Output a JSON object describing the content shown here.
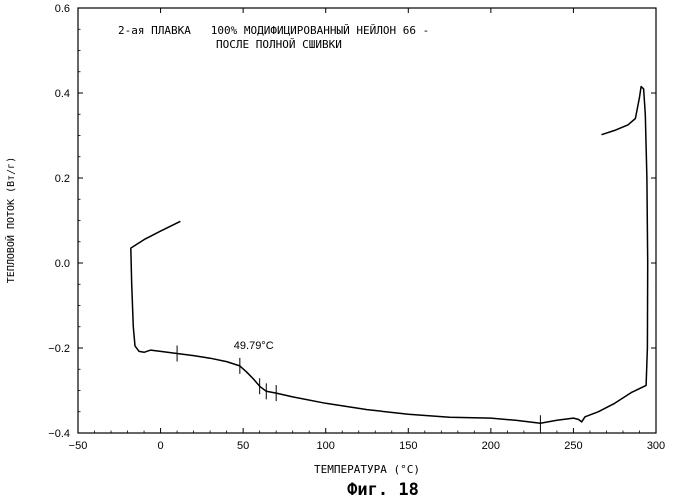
{
  "chart_data": {
    "type": "line",
    "title_line1": "2-ая ПЛАВКА   100% МОДИФИЦИРОВАННЫЙ НЕЙЛОН 66 -",
    "title_line2": "ПОСЛЕ ПОЛНОЙ СШИВКИ",
    "xlabel": "ТЕМПЕРАТУРА (°C)",
    "ylabel": "ТЕПЛОВОЙ ПОТОК (Вт/г)",
    "caption": "Фиг. 18",
    "xlim": [
      -50,
      300
    ],
    "ylim": [
      -0.4,
      0.6
    ],
    "x_ticks": [
      -50,
      0,
      50,
      100,
      150,
      200,
      250,
      300
    ],
    "x_tick_labels": [
      "−50",
      "0",
      "50",
      "100",
      "150",
      "200",
      "250",
      "300"
    ],
    "y_ticks": [
      -0.4,
      -0.2,
      0.0,
      0.2,
      0.4,
      0.6
    ],
    "y_tick_labels": [
      "−0.4",
      "−0.2",
      "0.0",
      "0.2",
      "0.4",
      "0.6"
    ],
    "grid": false,
    "annotation": {
      "text": "49.79°C",
      "x": 49.79,
      "y": -0.235
    },
    "series": [
      {
        "points": [
          [
            12,
            0.098
          ],
          [
            0,
            0.075
          ],
          [
            -10,
            0.055
          ],
          [
            -18,
            0.035
          ],
          [
            -17.5,
            -0.05
          ],
          [
            -16.5,
            -0.15
          ],
          [
            -15.5,
            -0.195
          ],
          [
            -13,
            -0.208
          ],
          [
            -10,
            -0.21
          ],
          [
            -6,
            -0.205
          ],
          [
            0,
            -0.208
          ],
          [
            10,
            -0.213
          ],
          [
            20,
            -0.218
          ],
          [
            30,
            -0.224
          ],
          [
            40,
            -0.232
          ],
          [
            48,
            -0.242
          ],
          [
            52,
            -0.256
          ],
          [
            56,
            -0.272
          ],
          [
            60,
            -0.29
          ],
          [
            64,
            -0.302
          ],
          [
            70,
            -0.306
          ],
          [
            80,
            -0.315
          ],
          [
            100,
            -0.33
          ],
          [
            125,
            -0.345
          ],
          [
            150,
            -0.356
          ],
          [
            175,
            -0.363
          ],
          [
            200,
            -0.365
          ],
          [
            215,
            -0.37
          ],
          [
            230,
            -0.377
          ],
          [
            240,
            -0.37
          ],
          [
            250,
            -0.365
          ],
          [
            253,
            -0.368
          ],
          [
            255,
            -0.374
          ],
          [
            257,
            -0.362
          ],
          [
            265,
            -0.35
          ],
          [
            275,
            -0.33
          ],
          [
            285,
            -0.305
          ],
          [
            294,
            -0.288
          ],
          [
            294.8,
            -0.2
          ],
          [
            295,
            0.0
          ],
          [
            294.5,
            0.2
          ],
          [
            293.5,
            0.35
          ],
          [
            292.5,
            0.41
          ],
          [
            291,
            0.415
          ],
          [
            290,
            0.39
          ],
          [
            287.5,
            0.34
          ],
          [
            283,
            0.325
          ],
          [
            275,
            0.312
          ],
          [
            267,
            0.302
          ]
        ]
      }
    ],
    "tick_marks": [
      {
        "x": 10,
        "y": -0.213
      },
      {
        "x": 48,
        "y": -0.242
      },
      {
        "x": 60,
        "y": -0.29
      },
      {
        "x": 64,
        "y": -0.302
      },
      {
        "x": 70,
        "y": -0.306
      },
      {
        "x": 230,
        "y": -0.377
      }
    ],
    "colors": {
      "line": "#000000",
      "axes": "#000000",
      "background": "#ffffff"
    }
  }
}
